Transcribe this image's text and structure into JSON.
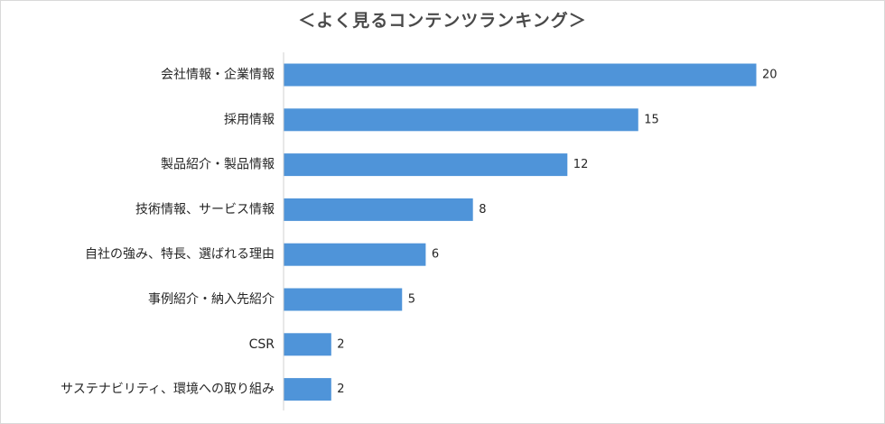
{
  "chart_data": {
    "type": "bar",
    "orientation": "horizontal",
    "title": "＜よく見るコンテンツランキング＞",
    "categories": [
      "会社情報・企業情報",
      "採用情報",
      "製品紹介・製品情報",
      "技術情報、サービス情報",
      "自社の強み、特長、選ばれる理由",
      "事例紹介・納入先紹介",
      "CSR",
      "サステナビリティ、環境への取り組み"
    ],
    "values": [
      20,
      15,
      12,
      8,
      6,
      5,
      2,
      2
    ],
    "xlim": [
      0,
      20
    ],
    "grid": false,
    "bar_color": "#4f94d9",
    "axis_color": "#d0d0d0"
  }
}
